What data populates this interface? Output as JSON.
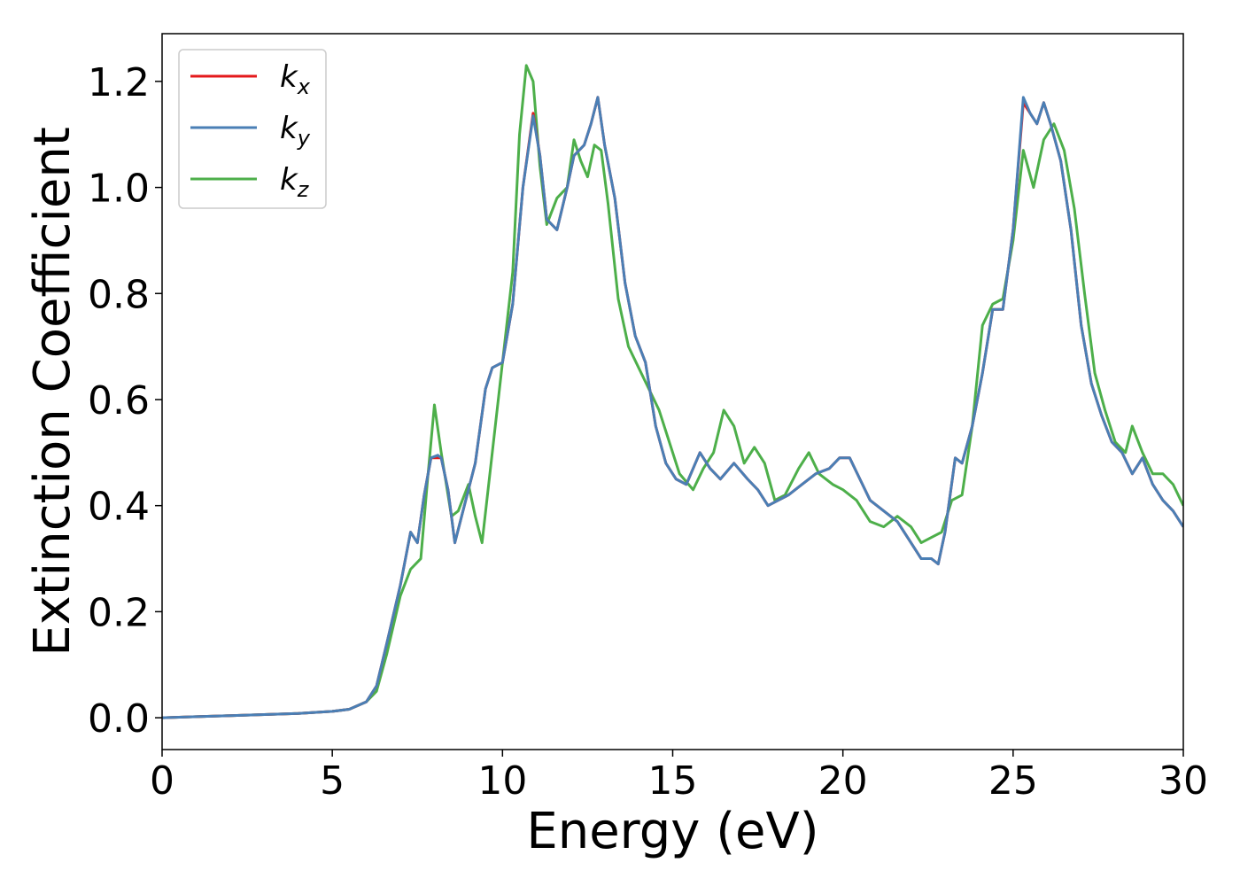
{
  "chart_data": {
    "type": "line",
    "xlabel": "Energy (eV)",
    "ylabel": "Extinction Coefficient",
    "xlim": [
      0,
      30
    ],
    "ylim": [
      -0.06,
      1.29
    ],
    "xticks": [
      0,
      5,
      10,
      15,
      20,
      25,
      30
    ],
    "xtick_labels": [
      "0",
      "5",
      "10",
      "15",
      "20",
      "25",
      "30"
    ],
    "yticks": [
      0.0,
      0.2,
      0.4,
      0.6,
      0.8,
      1.0,
      1.2
    ],
    "ytick_labels": [
      "0.0",
      "0.2",
      "0.4",
      "0.6",
      "0.8",
      "1.0",
      "1.2"
    ],
    "grid": false,
    "legend_position": "top-left",
    "series": [
      {
        "name": "k",
        "subscript": "x",
        "color": "#e41a1c",
        "x": [
          0,
          1,
          2,
          3,
          4,
          5,
          5.5,
          6.0,
          6.3,
          6.6,
          7.0,
          7.3,
          7.5,
          7.7,
          7.9,
          8.1,
          8.2,
          8.4,
          8.6,
          8.8,
          9.2,
          9.5,
          9.7,
          10.0,
          10.3,
          10.6,
          10.9,
          11.1,
          11.3,
          11.6,
          11.9,
          12.1,
          12.4,
          12.6,
          12.8,
          13.0,
          13.3,
          13.6,
          13.9,
          14.2,
          14.5,
          14.8,
          15.1,
          15.4,
          15.8,
          16.1,
          16.4,
          16.8,
          17.2,
          17.5,
          17.8,
          18.1,
          18.4,
          18.8,
          19.2,
          19.6,
          19.9,
          20.2,
          20.5,
          20.8,
          21.2,
          21.6,
          22.0,
          22.3,
          22.6,
          22.8,
          23.0,
          23.3,
          23.5,
          23.8,
          24.1,
          24.4,
          24.7,
          25.0,
          25.3,
          25.5,
          25.7,
          25.9,
          26.1,
          26.4,
          26.7,
          27.0,
          27.3,
          27.6,
          27.9,
          28.2,
          28.5,
          28.8,
          29.1,
          29.4,
          29.7,
          30.0
        ],
        "y": [
          0.0,
          0.002,
          0.004,
          0.006,
          0.008,
          0.012,
          0.016,
          0.03,
          0.06,
          0.14,
          0.25,
          0.35,
          0.33,
          0.42,
          0.49,
          0.49,
          0.49,
          0.43,
          0.33,
          0.38,
          0.48,
          0.62,
          0.66,
          0.67,
          0.78,
          1.0,
          1.14,
          1.06,
          0.94,
          0.92,
          1.0,
          1.06,
          1.08,
          1.12,
          1.17,
          1.08,
          0.98,
          0.82,
          0.72,
          0.67,
          0.55,
          0.48,
          0.45,
          0.44,
          0.5,
          0.47,
          0.45,
          0.48,
          0.45,
          0.43,
          0.4,
          0.41,
          0.42,
          0.44,
          0.46,
          0.47,
          0.49,
          0.49,
          0.45,
          0.41,
          0.39,
          0.37,
          0.33,
          0.3,
          0.3,
          0.29,
          0.35,
          0.49,
          0.48,
          0.55,
          0.65,
          0.77,
          0.77,
          0.92,
          1.16,
          1.14,
          1.12,
          1.16,
          1.12,
          1.05,
          0.92,
          0.74,
          0.63,
          0.57,
          0.52,
          0.5,
          0.46,
          0.49,
          0.44,
          0.41,
          0.39,
          0.36
        ]
      },
      {
        "name": "k",
        "subscript": "y",
        "color": "#4a7fb5",
        "x": [
          0,
          1,
          2,
          3,
          4,
          5,
          5.5,
          6.0,
          6.3,
          6.6,
          7.0,
          7.3,
          7.5,
          7.7,
          7.9,
          8.1,
          8.2,
          8.4,
          8.6,
          8.8,
          9.2,
          9.5,
          9.7,
          10.0,
          10.3,
          10.6,
          10.9,
          11.1,
          11.3,
          11.6,
          11.9,
          12.1,
          12.4,
          12.6,
          12.8,
          13.0,
          13.3,
          13.6,
          13.9,
          14.2,
          14.5,
          14.8,
          15.1,
          15.4,
          15.8,
          16.1,
          16.4,
          16.8,
          17.2,
          17.5,
          17.8,
          18.1,
          18.4,
          18.8,
          19.2,
          19.6,
          19.9,
          20.2,
          20.5,
          20.8,
          21.2,
          21.6,
          22.0,
          22.3,
          22.6,
          22.8,
          23.0,
          23.3,
          23.5,
          23.8,
          24.1,
          24.4,
          24.7,
          25.0,
          25.3,
          25.5,
          25.7,
          25.9,
          26.1,
          26.4,
          26.7,
          27.0,
          27.3,
          27.6,
          27.9,
          28.2,
          28.5,
          28.8,
          29.1,
          29.4,
          29.7,
          30.0
        ],
        "y": [
          0.0,
          0.002,
          0.004,
          0.006,
          0.008,
          0.012,
          0.016,
          0.03,
          0.06,
          0.14,
          0.25,
          0.35,
          0.33,
          0.42,
          0.49,
          0.495,
          0.49,
          0.43,
          0.33,
          0.38,
          0.48,
          0.62,
          0.66,
          0.67,
          0.78,
          1.0,
          1.135,
          1.06,
          0.94,
          0.92,
          1.0,
          1.06,
          1.08,
          1.12,
          1.17,
          1.08,
          0.98,
          0.82,
          0.72,
          0.67,
          0.55,
          0.48,
          0.45,
          0.44,
          0.5,
          0.47,
          0.45,
          0.48,
          0.45,
          0.43,
          0.4,
          0.41,
          0.42,
          0.44,
          0.46,
          0.47,
          0.49,
          0.49,
          0.45,
          0.41,
          0.39,
          0.37,
          0.33,
          0.3,
          0.3,
          0.29,
          0.35,
          0.49,
          0.48,
          0.55,
          0.65,
          0.77,
          0.77,
          0.92,
          1.17,
          1.14,
          1.12,
          1.16,
          1.12,
          1.05,
          0.92,
          0.74,
          0.63,
          0.57,
          0.52,
          0.5,
          0.46,
          0.49,
          0.44,
          0.41,
          0.39,
          0.36
        ]
      },
      {
        "name": "k",
        "subscript": "z",
        "color": "#4daf4a",
        "x": [
          0,
          1,
          2,
          3,
          4,
          5,
          5.5,
          6.0,
          6.3,
          6.6,
          7.0,
          7.3,
          7.6,
          7.8,
          8.0,
          8.2,
          8.5,
          8.7,
          9.0,
          9.2,
          9.4,
          9.7,
          10.0,
          10.3,
          10.5,
          10.7,
          10.9,
          11.1,
          11.3,
          11.6,
          11.9,
          12.1,
          12.3,
          12.5,
          12.7,
          12.9,
          13.1,
          13.4,
          13.7,
          14.0,
          14.3,
          14.6,
          14.9,
          15.2,
          15.6,
          15.9,
          16.2,
          16.5,
          16.8,
          17.1,
          17.4,
          17.7,
          18.0,
          18.3,
          18.7,
          19.0,
          19.3,
          19.7,
          20.0,
          20.4,
          20.8,
          21.2,
          21.6,
          22.0,
          22.3,
          22.6,
          22.9,
          23.2,
          23.5,
          23.8,
          24.1,
          24.4,
          24.7,
          25.0,
          25.3,
          25.6,
          25.9,
          26.2,
          26.5,
          26.8,
          27.1,
          27.4,
          27.7,
          28.0,
          28.3,
          28.5,
          28.8,
          29.1,
          29.4,
          29.7,
          30.0
        ],
        "y": [
          0.0,
          0.002,
          0.004,
          0.006,
          0.008,
          0.012,
          0.016,
          0.03,
          0.05,
          0.12,
          0.23,
          0.28,
          0.3,
          0.45,
          0.59,
          0.5,
          0.38,
          0.39,
          0.44,
          0.38,
          0.33,
          0.5,
          0.67,
          0.84,
          1.1,
          1.23,
          1.2,
          1.04,
          0.93,
          0.98,
          1.0,
          1.09,
          1.05,
          1.02,
          1.08,
          1.07,
          0.97,
          0.79,
          0.7,
          0.66,
          0.62,
          0.58,
          0.52,
          0.46,
          0.43,
          0.47,
          0.5,
          0.58,
          0.55,
          0.48,
          0.51,
          0.48,
          0.41,
          0.42,
          0.47,
          0.5,
          0.46,
          0.44,
          0.43,
          0.41,
          0.37,
          0.36,
          0.38,
          0.36,
          0.33,
          0.34,
          0.35,
          0.41,
          0.42,
          0.55,
          0.74,
          0.78,
          0.79,
          0.9,
          1.07,
          1.0,
          1.09,
          1.12,
          1.07,
          0.96,
          0.8,
          0.65,
          0.58,
          0.52,
          0.5,
          0.55,
          0.5,
          0.46,
          0.46,
          0.44,
          0.4
        ]
      }
    ]
  }
}
